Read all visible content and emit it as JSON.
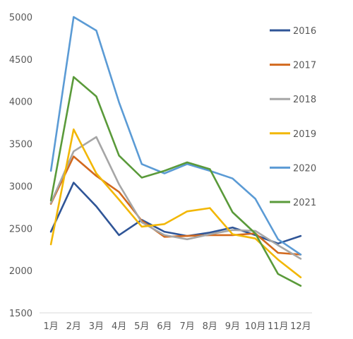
{
  "chart_data": {
    "type": "line",
    "title": "",
    "xlabel": "",
    "ylabel": "",
    "categories": [
      "1月",
      "2月",
      "3月",
      "4月",
      "5月",
      "6月",
      "7月",
      "8月",
      "9月",
      "10月",
      "11月",
      "12月"
    ],
    "ylim": [
      1500,
      5000
    ],
    "yticks": [
      1500,
      2000,
      2500,
      3000,
      3500,
      4000,
      4500,
      5000
    ],
    "grid": false,
    "legend_position": "right",
    "series": [
      {
        "name": "2016",
        "color": "#2f5597",
        "values": [
          2460,
          3040,
          2760,
          2420,
          2600,
          2460,
          2410,
          2450,
          2510,
          2420,
          2320,
          2410
        ]
      },
      {
        "name": "2017",
        "color": "#d2691e",
        "values": [
          2790,
          3350,
          3120,
          2930,
          2590,
          2400,
          2410,
          2420,
          2420,
          2440,
          2210,
          2190
        ]
      },
      {
        "name": "2018",
        "color": "#a6a6a6",
        "values": [
          2800,
          3410,
          3580,
          3020,
          2570,
          2420,
          2370,
          2430,
          2480,
          2470,
          2300,
          2140
        ]
      },
      {
        "name": "2019",
        "color": "#f2b705",
        "values": [
          2310,
          3670,
          3150,
          2840,
          2520,
          2550,
          2700,
          2740,
          2430,
          2380,
          2130,
          1920
        ]
      },
      {
        "name": "2020",
        "color": "#5b9bd5",
        "values": [
          3180,
          5000,
          4840,
          3990,
          3260,
          3150,
          3260,
          3180,
          3090,
          2850,
          2370,
          2190
        ]
      },
      {
        "name": "2021",
        "color": "#5a9a3a",
        "values": [
          2830,
          4290,
          4060,
          3360,
          3100,
          3180,
          3280,
          3200,
          2690,
          2440,
          1960,
          1820
        ]
      }
    ]
  }
}
